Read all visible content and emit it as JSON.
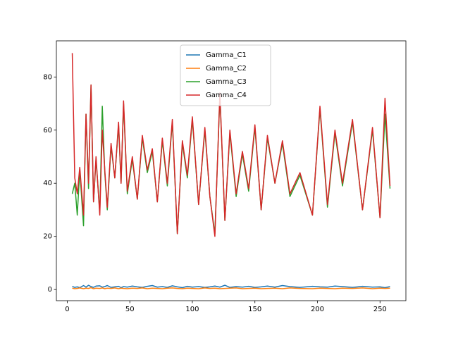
{
  "chart_data": {
    "type": "line",
    "x": [
      4,
      6,
      8,
      10,
      13,
      15,
      17,
      19,
      21,
      23,
      26,
      28,
      30,
      32,
      35,
      38,
      41,
      43,
      45,
      48,
      52,
      56,
      60,
      64,
      68,
      72,
      76,
      80,
      84,
      88,
      92,
      96,
      100,
      105,
      110,
      114,
      118,
      122,
      126,
      130,
      135,
      140,
      145,
      150,
      155,
      160,
      166,
      172,
      178,
      186,
      196,
      202,
      208,
      214,
      220,
      228,
      236,
      244,
      250,
      254,
      258
    ],
    "series": [
      {
        "name": "Gamma_C1",
        "color": "#1f77b4",
        "values": [
          1.2,
          0.8,
          1.0,
          0.7,
          1.5,
          0.9,
          1.6,
          1.1,
          0.8,
          1.3,
          1.4,
          0.9,
          1.1,
          1.5,
          0.8,
          1.0,
          1.2,
          0.7,
          1.1,
          0.9,
          1.3,
          1.0,
          0.8,
          1.2,
          1.5,
          0.9,
          1.1,
          0.8,
          1.4,
          1.0,
          0.7,
          1.2,
          0.9,
          1.1,
          0.8,
          1.0,
          1.3,
          0.9,
          1.6,
          0.8,
          1.1,
          0.9,
          1.2,
          0.8,
          1.0,
          1.3,
          0.9,
          1.5,
          1.1,
          0.8,
          1.2,
          1.0,
          0.9,
          1.3,
          1.1,
          0.8,
          1.2,
          0.9,
          1.0,
          0.7,
          1.1
        ]
      },
      {
        "name": "Gamma_C2",
        "color": "#ff7f0e",
        "values": [
          0.5,
          0.3,
          0.4,
          0.6,
          0.3,
          0.5,
          0.4,
          0.7,
          0.3,
          0.5,
          0.4,
          0.6,
          0.3,
          0.5,
          0.4,
          0.6,
          0.3,
          0.5,
          0.4,
          0.3,
          0.5,
          0.4,
          0.6,
          0.3,
          0.5,
          0.4,
          0.3,
          0.5,
          0.6,
          0.4,
          0.3,
          0.5,
          0.4,
          0.3,
          0.6,
          0.4,
          0.5,
          0.3,
          0.4,
          0.5,
          0.6,
          0.3,
          0.4,
          0.5,
          0.3,
          0.4,
          0.5,
          0.3,
          0.6,
          0.4,
          0.3,
          0.5,
          0.4,
          0.3,
          0.5,
          0.4,
          0.6,
          0.3,
          0.5,
          0.4,
          0.5
        ]
      },
      {
        "name": "Gamma_C3",
        "color": "#2ca02c",
        "values": [
          36,
          40,
          28,
          45,
          24,
          66,
          38,
          77,
          33,
          49,
          29,
          69,
          44,
          30,
          54,
          42,
          62,
          40,
          70,
          36,
          49,
          34,
          57,
          44,
          52,
          33,
          56,
          39,
          63,
          21,
          55,
          42,
          64,
          32,
          60,
          35,
          21,
          73,
          26,
          59,
          35,
          51,
          37,
          61,
          30,
          57,
          40,
          55,
          35,
          43,
          28,
          68,
          31,
          59,
          39,
          63,
          30,
          60,
          27,
          66,
          38
        ]
      },
      {
        "name": "Gamma_C4",
        "color": "#d62728",
        "values": [
          89,
          42,
          36,
          46,
          28,
          66,
          40,
          77,
          33,
          50,
          28,
          60,
          45,
          31,
          55,
          42,
          63,
          40,
          71,
          37,
          50,
          34,
          58,
          45,
          53,
          33,
          57,
          40,
          64,
          21,
          56,
          43,
          65,
          32,
          61,
          35,
          20,
          74,
          26,
          60,
          36,
          52,
          38,
          62,
          30,
          58,
          40,
          56,
          36,
          44,
          28,
          69,
          32,
          60,
          40,
          64,
          30,
          61,
          27,
          72,
          39
        ]
      }
    ],
    "xlim": [
      -8.7,
      270.7
    ],
    "ylim": [
      -4.2,
      93.6
    ],
    "xticks": [
      0,
      50,
      100,
      150,
      200,
      250
    ],
    "yticks": [
      0,
      20,
      40,
      60,
      80
    ],
    "grid": false,
    "legend": "upper center"
  }
}
